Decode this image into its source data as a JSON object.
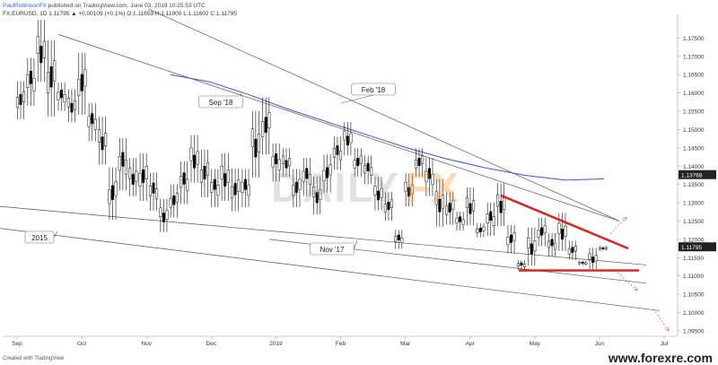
{
  "header": {
    "author": "PaulRobinsonFX",
    "published": "published on TradingView.com, June 03, 2019 10:25:53 UTC",
    "symbol_line": "FX:EURUSD, 1D 1.11795 ▲ +0.00109 (+0.1%) O:1.11659 H:1.11900 L:1.11602 C:1.11795"
  },
  "footer": {
    "created_with": "Created with TradingView",
    "watermark": "www.forexre.com"
  },
  "logo": {
    "daily": "DAILY",
    "fx": "FX"
  },
  "chart_data": {
    "type": "candlestick",
    "symbol": "FX:EURUSD",
    "timeframe": "1D",
    "last_price": 1.11795,
    "price_badge": "1.11795",
    "ma_badge": "1.13768",
    "ylim": [
      1.0935,
      1.1805
    ],
    "y_ticks": [
      "1.17500",
      "1.17000",
      "1.16500",
      "1.16000",
      "1.15500",
      "1.15000",
      "1.14500",
      "1.14000",
      "1.13500",
      "1.13000",
      "1.12500",
      "1.12000",
      "1.11500",
      "1.11000",
      "1.10500",
      "1.10000",
      "1.09500"
    ],
    "x_ticks": [
      "Sep",
      "Oct",
      "Nov",
      "Dec",
      "2019",
      "Feb",
      "Mar",
      "Apr",
      "May",
      "Jun",
      "Jul"
    ],
    "annotations": [
      "Sep '18",
      "Feb '18",
      "2015",
      "Nov '17"
    ],
    "colors": {
      "up": "#ffffff",
      "down": "#000000",
      "ma": "#3f51d6",
      "triangle": "#e01b1b",
      "trendline": "#555555",
      "projection": "#e8646a",
      "badge": "#222222"
    },
    "candle_path": [
      [
        1.162,
        1.154
      ],
      [
        1.168,
        1.158
      ],
      [
        1.178,
        1.165
      ],
      [
        1.172,
        1.156
      ],
      [
        1.162,
        1.156
      ],
      [
        1.16,
        1.153
      ],
      [
        1.169,
        1.156
      ],
      [
        1.156,
        1.148
      ],
      [
        1.152,
        1.142
      ],
      [
        1.138,
        1.127
      ],
      [
        1.146,
        1.135
      ],
      [
        1.141,
        1.133
      ],
      [
        1.142,
        1.132
      ],
      [
        1.137,
        1.129
      ],
      [
        1.13,
        1.123
      ],
      [
        1.134,
        1.127
      ],
      [
        1.14,
        1.131
      ],
      [
        1.147,
        1.137
      ],
      [
        1.143,
        1.133
      ],
      [
        1.138,
        1.13
      ],
      [
        1.142,
        1.132
      ],
      [
        1.138,
        1.129
      ],
      [
        1.138,
        1.13
      ],
      [
        1.153,
        1.139
      ],
      [
        1.157,
        1.145
      ],
      [
        1.145,
        1.137
      ],
      [
        1.144,
        1.138
      ],
      [
        1.138,
        1.13
      ],
      [
        1.141,
        1.133
      ],
      [
        1.136,
        1.128
      ],
      [
        1.142,
        1.134
      ],
      [
        1.147,
        1.14
      ],
      [
        1.151,
        1.144
      ],
      [
        1.144,
        1.138
      ],
      [
        1.142,
        1.136
      ],
      [
        1.136,
        1.129
      ],
      [
        1.132,
        1.126
      ],
      [
        1.122,
        1.118
      ],
      [
        1.137,
        1.13
      ],
      [
        1.144,
        1.138
      ],
      [
        1.141,
        1.133
      ],
      [
        1.135,
        1.125
      ],
      [
        1.132,
        1.125
      ],
      [
        1.127,
        1.123
      ],
      [
        1.133,
        1.125
      ],
      [
        1.124,
        1.121
      ],
      [
        1.129,
        1.122
      ],
      [
        1.134,
        1.125
      ],
      [
        1.123,
        1.117
      ],
      [
        1.114,
        1.112
      ],
      [
        1.122,
        1.114
      ],
      [
        1.125,
        1.119
      ],
      [
        1.121,
        1.116
      ],
      [
        1.126,
        1.118
      ],
      [
        1.119,
        1.115
      ],
      [
        1.114,
        1.113
      ],
      [
        1.117,
        1.1125
      ],
      [
        1.118,
        1.117
      ]
    ],
    "moving_average": [
      [
        1.165
      ],
      [
        1.163
      ],
      [
        1.1595
      ],
      [
        1.1555
      ],
      [
        1.152
      ],
      [
        1.1485
      ],
      [
        1.145
      ],
      [
        1.142
      ],
      [
        1.1395
      ],
      [
        1.1375
      ],
      [
        1.1362
      ],
      [
        1.1365
      ]
    ],
    "trendlines": [
      {
        "label": "Sep '18",
        "from": 1.176,
        "to": 1.125
      },
      {
        "label": "Feb '18",
        "from": 1.183,
        "to": 1.125
      },
      {
        "label": "2015",
        "from": 1.129,
        "to": 1.113
      },
      {
        "label": "Nov '17",
        "from": 1.123,
        "to": 1.1005
      },
      {
        "label": "",
        "from": 1.12,
        "to": 1.108
      }
    ],
    "triangle": {
      "upper": [
        1.132,
        1.1175
      ],
      "lower": [
        1.1115,
        1.1115
      ]
    },
    "projections": [
      {
        "from": 1.1215,
        "to": 1.126
      },
      {
        "from": 1.111,
        "to": 1.106
      },
      {
        "from": 1.101,
        "to": 1.095
      }
    ]
  }
}
